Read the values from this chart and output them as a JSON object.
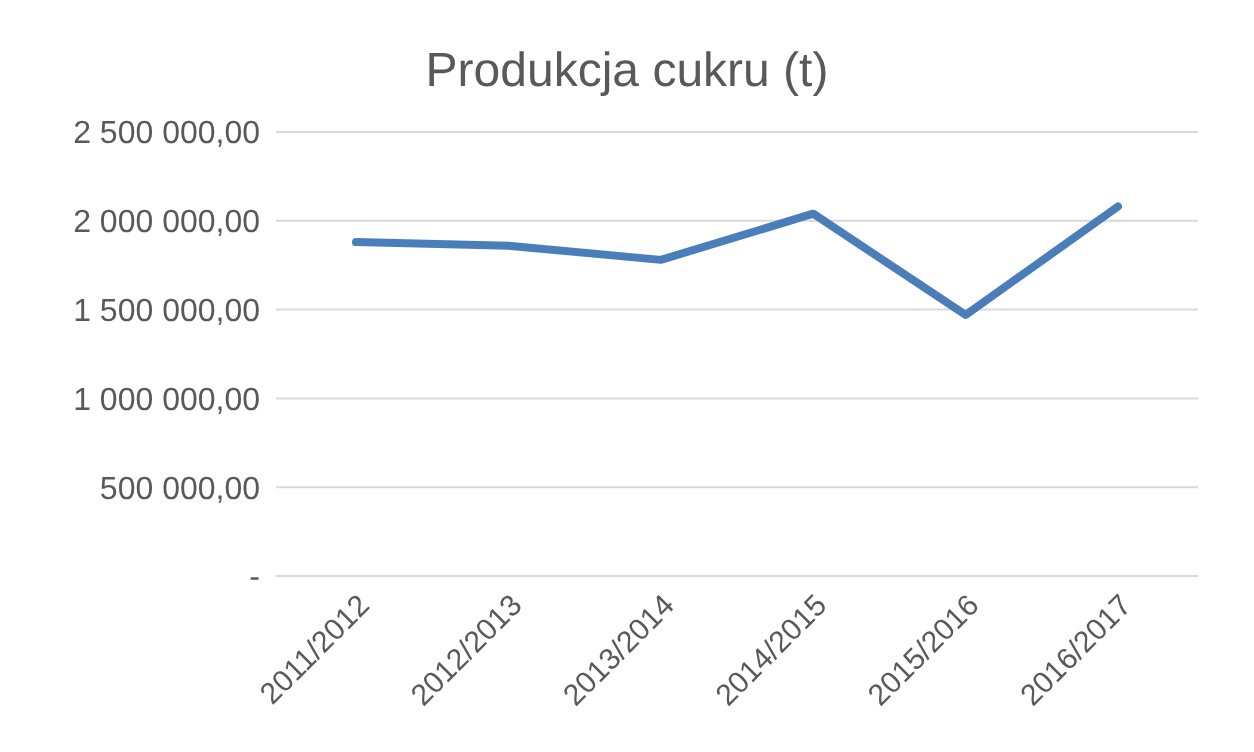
{
  "chart_data": {
    "type": "line",
    "title": "Produkcja cukru (t)",
    "categories": [
      "2011/2012",
      "2012/2013",
      "2013/2014",
      "2014/2015",
      "2015/2016",
      "2016/2017"
    ],
    "series": [
      {
        "color": "#4a7ebb",
        "values": [
          1880000,
          1860000,
          1780000,
          2040000,
          1470000,
          2080000
        ]
      }
    ],
    "ylim": [
      0,
      2500000
    ],
    "yticks": [
      {
        "value": 0,
        "label": "-"
      },
      {
        "value": 500000,
        "label": "500 000,00"
      },
      {
        "value": 1000000,
        "label": "1 000 000,00"
      },
      {
        "value": 1500000,
        "label": "1 500 000,00"
      },
      {
        "value": 2000000,
        "label": "2 000 000,00"
      },
      {
        "value": 2500000,
        "label": "2 500 000,00"
      }
    ],
    "grid": "y",
    "legend": false,
    "marker": "none",
    "line_style": "solid"
  }
}
